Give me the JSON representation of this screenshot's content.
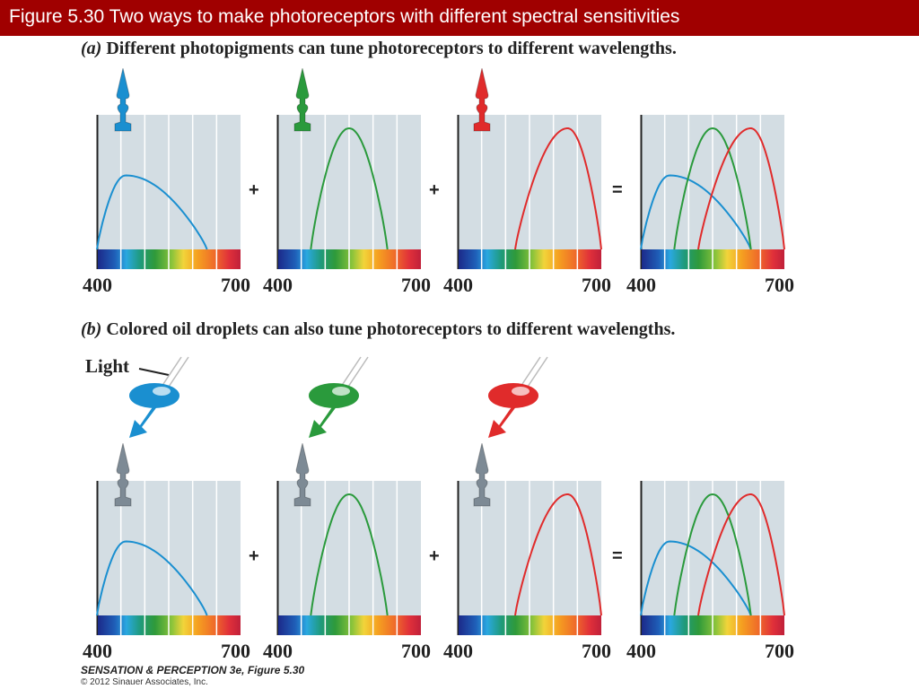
{
  "title": "Figure 5.30  Two ways to make photoreceptors with different spectral sensitivities",
  "section_a": {
    "letter": "(a)",
    "text": "Different photopigments can tune photoreceptors to different wavelengths."
  },
  "section_b": {
    "letter": "(b)",
    "text": "Colored oil droplets can also tune photoreceptors to different wavelengths."
  },
  "light_label": "Light",
  "operators": {
    "plus": "+",
    "equals": "="
  },
  "axis": {
    "min_label": "400",
    "max_label": "700"
  },
  "colors": {
    "blue": "#1a8fd0",
    "green": "#2a9a3c",
    "red": "#e02b2b",
    "gray": "#7d8a95",
    "plot_bg": "#d3dde3",
    "title_bar": "#a00000"
  },
  "chart_data": [
    {
      "type": "line",
      "id": "a1",
      "xlim": [
        400,
        700
      ],
      "series": [
        {
          "color": "blue",
          "peak": 460,
          "start": 400,
          "end": 630,
          "height": 0.55
        }
      ]
    },
    {
      "type": "line",
      "id": "a2",
      "xlim": [
        400,
        700
      ],
      "series": [
        {
          "color": "green",
          "peak": 550,
          "start": 470,
          "end": 630,
          "height": 0.9
        }
      ]
    },
    {
      "type": "line",
      "id": "a3",
      "xlim": [
        400,
        700
      ],
      "series": [
        {
          "color": "red",
          "peak": 630,
          "start": 520,
          "end": 700,
          "height": 0.9
        }
      ]
    },
    {
      "type": "line",
      "id": "a4",
      "xlim": [
        400,
        700
      ],
      "series": [
        {
          "color": "blue",
          "peak": 460,
          "start": 400,
          "end": 630,
          "height": 0.55
        },
        {
          "color": "green",
          "peak": 550,
          "start": 470,
          "end": 630,
          "height": 0.9
        },
        {
          "color": "red",
          "peak": 630,
          "start": 520,
          "end": 700,
          "height": 0.9
        }
      ]
    },
    {
      "type": "line",
      "id": "b1",
      "xlim": [
        400,
        700
      ],
      "series": [
        {
          "color": "blue",
          "peak": 460,
          "start": 400,
          "end": 630,
          "height": 0.55
        }
      ]
    },
    {
      "type": "line",
      "id": "b2",
      "xlim": [
        400,
        700
      ],
      "series": [
        {
          "color": "green",
          "peak": 550,
          "start": 470,
          "end": 630,
          "height": 0.9
        }
      ]
    },
    {
      "type": "line",
      "id": "b3",
      "xlim": [
        400,
        700
      ],
      "series": [
        {
          "color": "red",
          "peak": 630,
          "start": 520,
          "end": 700,
          "height": 0.9
        }
      ]
    },
    {
      "type": "line",
      "id": "b4",
      "xlim": [
        400,
        700
      ],
      "series": [
        {
          "color": "blue",
          "peak": 460,
          "start": 400,
          "end": 630,
          "height": 0.55
        },
        {
          "color": "green",
          "peak": 550,
          "start": 470,
          "end": 630,
          "height": 0.9
        },
        {
          "color": "red",
          "peak": 630,
          "start": 520,
          "end": 700,
          "height": 0.9
        }
      ]
    }
  ],
  "footer": {
    "title": "SENSATION & PERCEPTION 3e, Figure 5.30",
    "copyright": "© 2012 Sinauer Associates, Inc."
  }
}
